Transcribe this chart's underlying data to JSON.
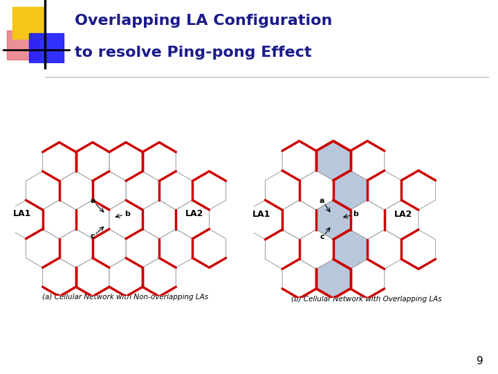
{
  "title_line1": "Overlapping LA Configuration",
  "title_line2": "to resolve Ping-pong Effect",
  "title_color": "#1a1a8c",
  "title_fontsize": 16,
  "bg_color": "#ffffff",
  "slide_number": "9",
  "caption_a": "(a) Cellular Network with Non-overlapping LAs",
  "caption_b": "(b) Cellular Network with Overlapping LAs",
  "caption_fontsize": 7.5,
  "hex_edge_color": "#999999",
  "hex_lw": 0.7,
  "red_border_color": "#cc0000",
  "red_border_lw": 2.5,
  "overlap_fill": "#b8c8dc",
  "label_fontsize": 9,
  "abc_fontsize": 8,
  "hex_r": 0.105
}
